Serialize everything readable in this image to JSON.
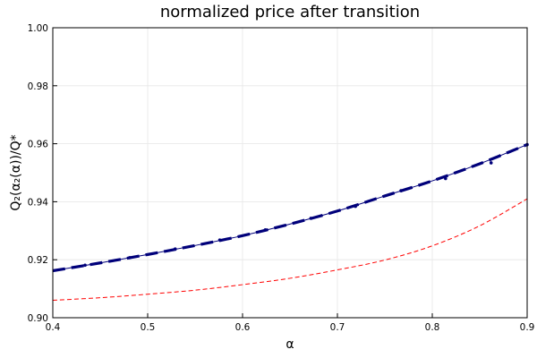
{
  "chart_data": {
    "type": "line",
    "title": "normalized price after transition",
    "xlabel": "α",
    "ylabel": "Q₂(α₂(α))/Q*",
    "xlim": [
      0.4,
      0.9
    ],
    "ylim": [
      0.9,
      1.0
    ],
    "xticks": [
      0.4,
      0.5,
      0.6,
      0.7,
      0.8,
      0.9
    ],
    "xtick_labels": [
      "0.4",
      "0.5",
      "0.6",
      "0.7",
      "0.8",
      "0.9"
    ],
    "yticks": [
      0.9,
      0.92,
      0.94,
      0.96,
      0.98,
      1.0
    ],
    "ytick_labels": [
      "0.90",
      "0.92",
      "0.94",
      "0.96",
      "0.98",
      "1.00"
    ],
    "grid": true,
    "legend": "none",
    "series": [
      {
        "style": "thick-dashed-with-thin-line",
        "color": "#00007a",
        "x": [
          0.4,
          0.45,
          0.5,
          0.55,
          0.6,
          0.65,
          0.7,
          0.75,
          0.8,
          0.85,
          0.9
        ],
        "y": [
          0.9162,
          0.9189,
          0.9218,
          0.9249,
          0.9283,
          0.9323,
          0.9368,
          0.942,
          0.9472,
          0.9531,
          0.9597
        ]
      },
      {
        "style": "markers",
        "color": "#00007a",
        "x": [
          0.434,
          0.481,
          0.529,
          0.576,
          0.624,
          0.672,
          0.719,
          0.767,
          0.814,
          0.862,
          0.9
        ],
        "y": [
          0.9181,
          0.9207,
          0.9237,
          0.9268,
          0.9303,
          0.9343,
          0.9384,
          0.9438,
          0.948,
          0.9534,
          0.9597
        ]
      },
      {
        "style": "dashed",
        "color": "#ff0000",
        "x": [
          0.4,
          0.45,
          0.5,
          0.55,
          0.6,
          0.65,
          0.7,
          0.75,
          0.8,
          0.85,
          0.9
        ],
        "y": [
          0.906,
          0.9069,
          0.9081,
          0.9095,
          0.9114,
          0.9136,
          0.9165,
          0.9199,
          0.9248,
          0.9317,
          0.941
        ]
      }
    ]
  }
}
